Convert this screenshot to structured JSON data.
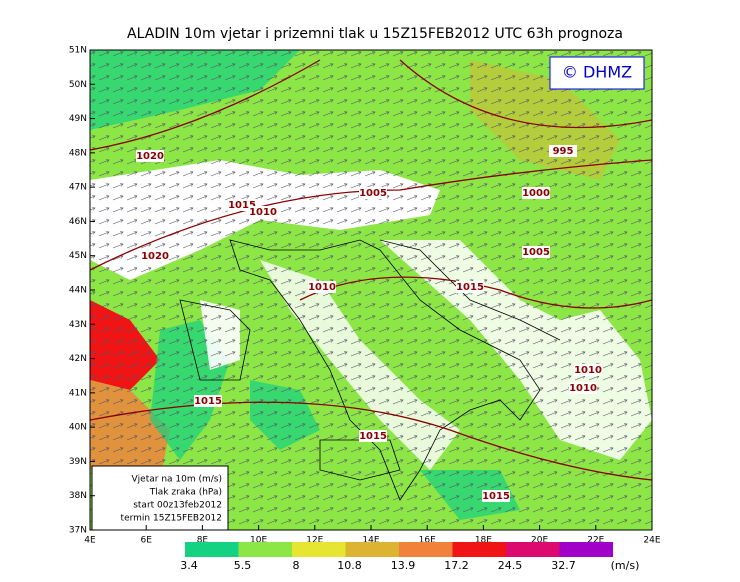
{
  "title": "ALADIN 10m vjetar i prizemni tlak u 15Z15FEB2012 UTC 63h prognoza",
  "logo": "© DHMZ",
  "lat_ticks": [
    {
      "value": 51,
      "label": "51N"
    },
    {
      "value": 50,
      "label": "50N"
    },
    {
      "value": 49,
      "label": "49N"
    },
    {
      "value": 48,
      "label": "48N"
    },
    {
      "value": 47,
      "label": "47N"
    },
    {
      "value": 46,
      "label": "46N"
    },
    {
      "value": 45,
      "label": "45N"
    },
    {
      "value": 44,
      "label": "44N"
    },
    {
      "value": 43,
      "label": "43N"
    },
    {
      "value": 42,
      "label": "42N"
    },
    {
      "value": 41,
      "label": "41N"
    },
    {
      "value": 40,
      "label": "40N"
    },
    {
      "value": 39,
      "label": "39N"
    },
    {
      "value": 38,
      "label": "38N"
    },
    {
      "value": 37,
      "label": "37N"
    }
  ],
  "lon_ticks": [
    {
      "value": 4,
      "label": "4E"
    },
    {
      "value": 6,
      "label": "6E"
    },
    {
      "value": 8,
      "label": "8E"
    },
    {
      "value": 10,
      "label": "10E"
    },
    {
      "value": 12,
      "label": "12E"
    },
    {
      "value": 14,
      "label": "14E"
    },
    {
      "value": 16,
      "label": "16E"
    },
    {
      "value": 18,
      "label": "18E"
    },
    {
      "value": 20,
      "label": "20E"
    },
    {
      "value": 22,
      "label": "22E"
    },
    {
      "value": 24,
      "label": "24E"
    }
  ],
  "isobar_labels": [
    "1020",
    "1015",
    "1010",
    "1020",
    "1005",
    "995",
    "1000",
    "1005",
    "1010",
    "1015",
    "1010",
    "1010",
    "1015",
    "1015",
    "1015"
  ],
  "info_box": [
    "Vjetar na 10m (m/s)",
    "Tlak zraka (hPa)",
    "start 00z13feb2012",
    "termin 15Z15FEB2012"
  ],
  "colorbar": {
    "values": [
      3.4,
      5.5,
      8,
      10.8,
      13.9,
      17.2,
      24.5,
      32.7
    ],
    "colors": [
      "#14d282",
      "#8ce646",
      "#e6e632",
      "#dcb432",
      "#f0823c",
      "#f01414",
      "#dc0a6e",
      "#a000c8"
    ],
    "unit": "(m/s)"
  }
}
